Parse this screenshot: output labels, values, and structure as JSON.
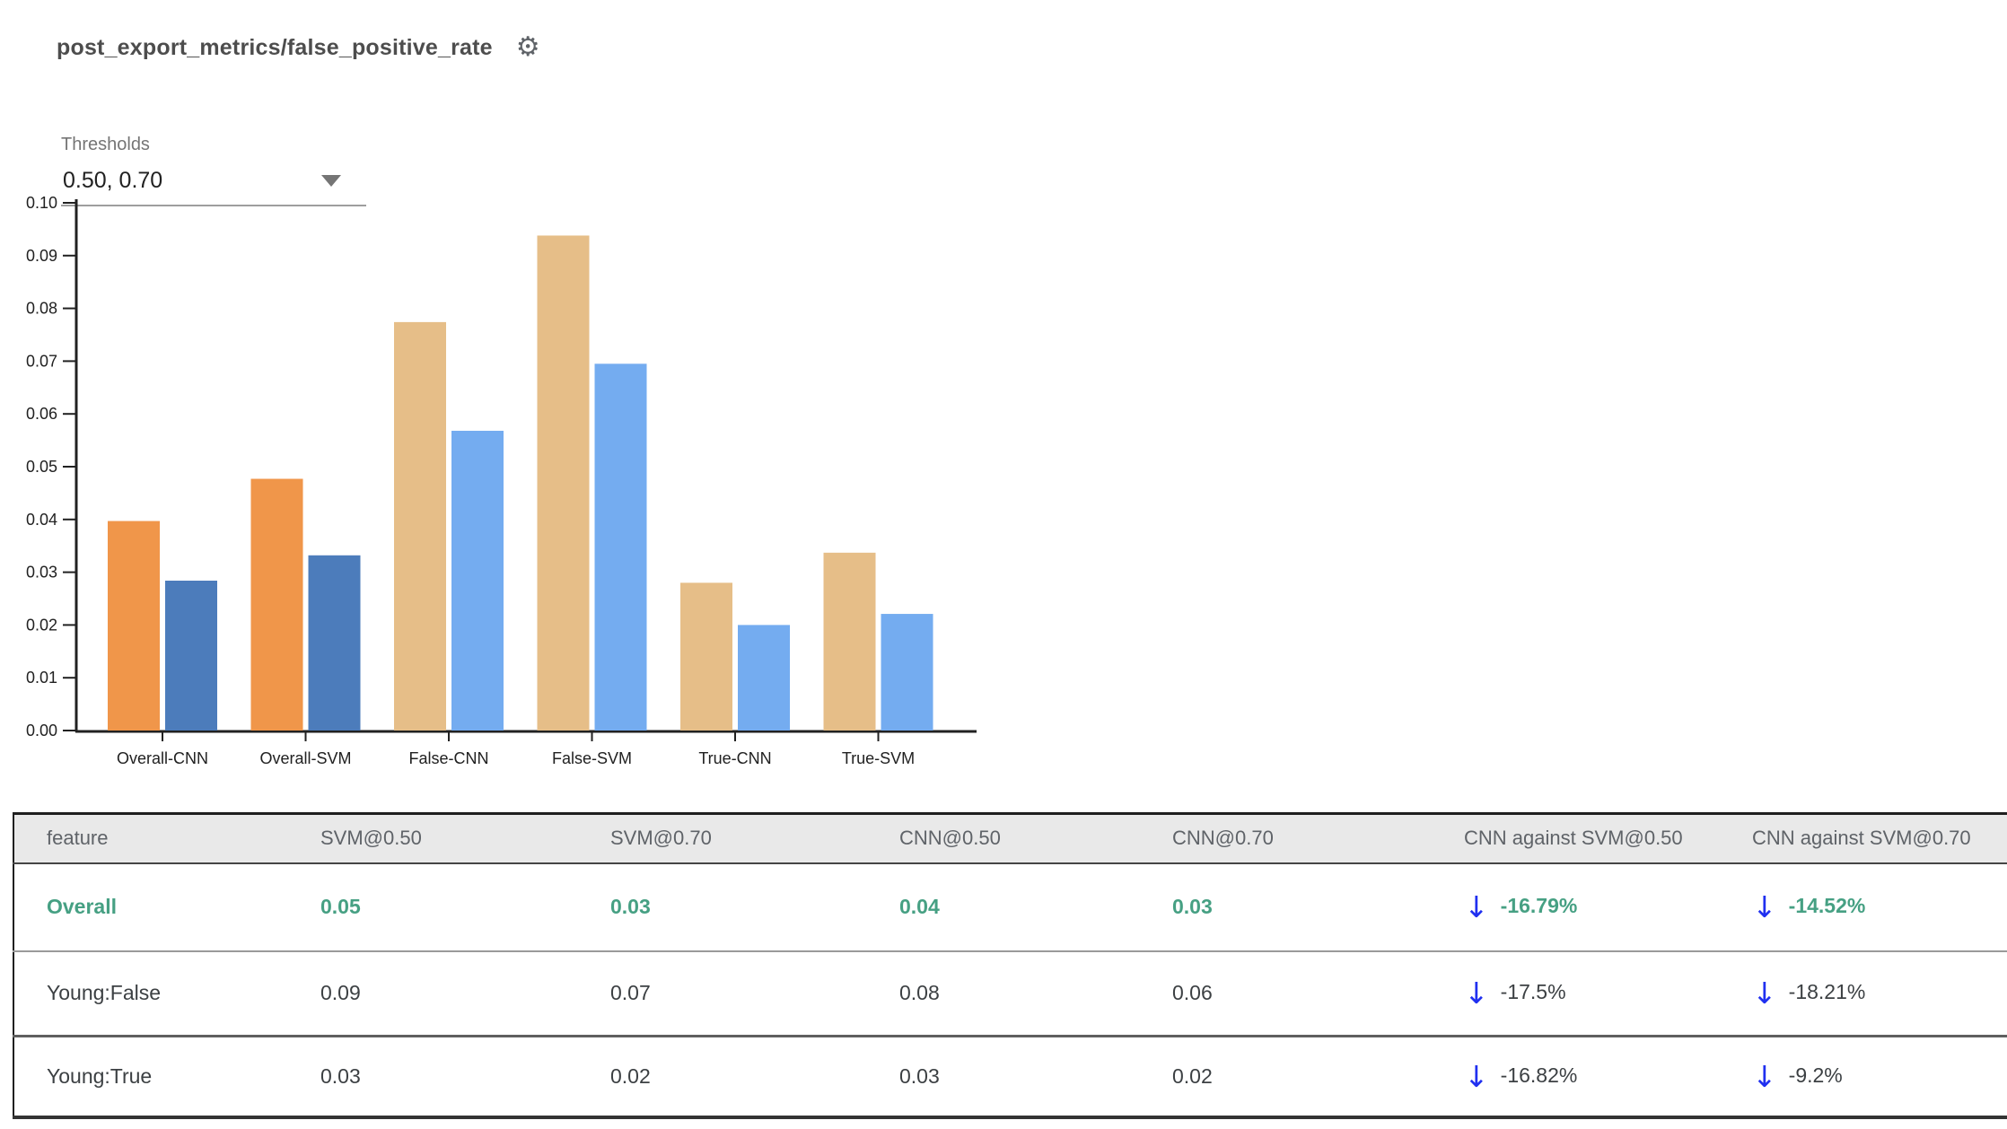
{
  "header": {
    "title": "post_export_metrics/false_positive_rate",
    "gear_icon": "⚙"
  },
  "thresholds": {
    "label": "Thresholds",
    "value": "0.50, 0.70"
  },
  "chart_data": {
    "type": "bar",
    "title": "",
    "xlabel": "",
    "ylabel": "",
    "categories": [
      "Overall-CNN",
      "Overall-SVM",
      "False-CNN",
      "False-SVM",
      "True-CNN",
      "True-SVM"
    ],
    "series": [
      {
        "name": "0.50",
        "values": [
          0.0397,
          0.0477,
          0.0774,
          0.0938,
          0.028,
          0.0337
        ]
      },
      {
        "name": "0.70",
        "values": [
          0.0284,
          0.0332,
          0.0568,
          0.0695,
          0.02,
          0.0221
        ]
      }
    ],
    "group_colors": [
      [
        "#F0964A",
        "#4C7CBB"
      ],
      [
        "#F0964A",
        "#4C7CBB"
      ],
      [
        "#E6BE88",
        "#74ACF0"
      ],
      [
        "#E6BE88",
        "#74ACF0"
      ],
      [
        "#E6BE88",
        "#74ACF0"
      ],
      [
        "#E6BE88",
        "#74ACF0"
      ]
    ],
    "ylim": [
      0,
      0.1
    ],
    "ytick_labels": [
      "0.00",
      "0.01",
      "0.02",
      "0.03",
      "0.04",
      "0.05",
      "0.06",
      "0.07",
      "0.08",
      "0.09",
      "0.10"
    ],
    "grid": false,
    "legend": "none"
  },
  "table": {
    "arrow_icon": "↓",
    "columns": [
      "feature",
      "SVM@0.50",
      "SVM@0.70",
      "CNN@0.50",
      "CNN@0.70",
      "CNN against SVM@0.50",
      "CNN against SVM@0.70"
    ],
    "rows": [
      {
        "feature": "Overall",
        "values": [
          "0.05",
          "0.03",
          "0.04",
          "0.03"
        ],
        "deltas": [
          "-16.79%",
          "-14.52%"
        ]
      },
      {
        "feature": "Young:False",
        "values": [
          "0.09",
          "0.07",
          "0.08",
          "0.06"
        ],
        "deltas": [
          "-17.5%",
          "-18.21%"
        ]
      },
      {
        "feature": "Young:True",
        "values": [
          "0.03",
          "0.02",
          "0.03",
          "0.02"
        ],
        "deltas": [
          "-16.82%",
          "-9.2%"
        ]
      }
    ]
  },
  "colors": {
    "title_text": "#4D4D4D",
    "accent_green": "#46A083",
    "arrow_blue": "#2030F0",
    "bar_orange": "#F0964A",
    "bar_dark_blue": "#4C7CBB",
    "bar_tan": "#E6BE88",
    "bar_light_blue": "#74ACF0",
    "header_bg": "#E9E9E9",
    "header_text": "#5F6368",
    "body_text": "#3C4043",
    "axis_text": "#212121"
  }
}
